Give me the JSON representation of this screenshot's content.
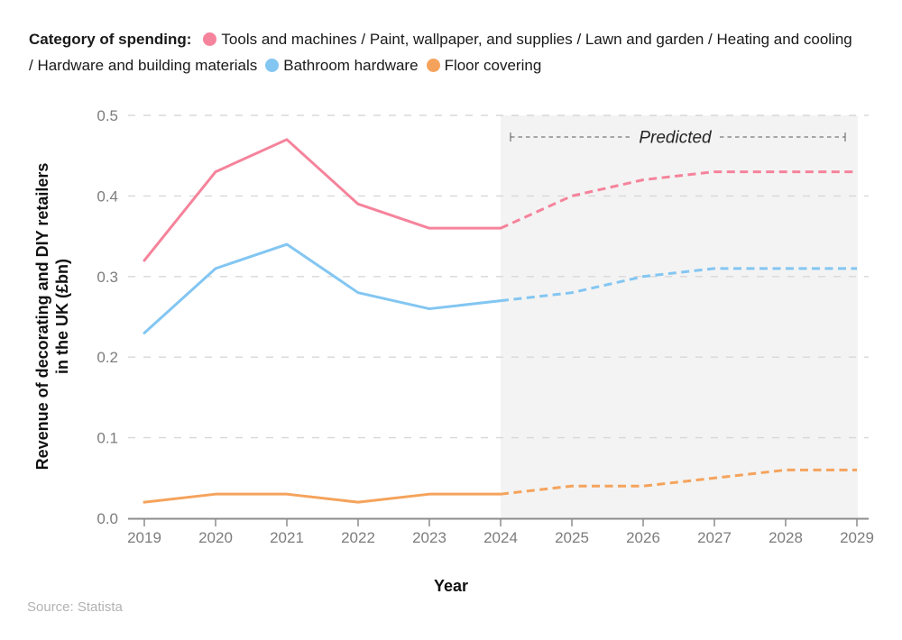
{
  "legend": {
    "title": "Category of spending:",
    "items": [
      {
        "label": "Tools and machines / Paint, wallpaper, and supplies / Lawn and garden / Heating and cooling / Hardware and building materials",
        "color": "#F5839B"
      },
      {
        "label": "Bathroom hardware",
        "color": "#83C6F2"
      },
      {
        "label": "Floor covering",
        "color": "#F5A35C"
      }
    ]
  },
  "axes": {
    "xlabel": "Year",
    "ylabel_lines": [
      "Revenue of decorating and DIY retailers",
      "in the UK (£bn)"
    ]
  },
  "annotation": {
    "predicted_label": "Predicted"
  },
  "source": "Source: Statista",
  "chart_data": {
    "type": "line",
    "title": "",
    "xlabel": "Year",
    "ylabel": "Revenue of decorating and DIY retailers in the UK (£bn)",
    "x": [
      2019,
      2020,
      2021,
      2022,
      2023,
      2024,
      2025,
      2026,
      2027,
      2028,
      2029
    ],
    "ylim": [
      0,
      0.5
    ],
    "yticks": [
      0,
      0.1,
      0.2,
      0.3,
      0.4,
      0.5
    ],
    "grid": "horizontal-dashed",
    "legend_position": "top",
    "predicted": {
      "label": "Predicted",
      "from": 2024,
      "to": 2029,
      "style": "dashed-lines-over-shaded-region"
    },
    "series": [
      {
        "name": "Tools and machines / Paint, wallpaper, and supplies / Lawn and garden / Heating and cooling / Hardware and building materials",
        "color": "#F5839B",
        "values": [
          0.32,
          0.43,
          0.47,
          0.39,
          0.36,
          0.36,
          0.4,
          0.42,
          0.43,
          0.43,
          0.43
        ]
      },
      {
        "name": "Bathroom hardware",
        "color": "#83C6F2",
        "values": [
          0.23,
          0.31,
          0.34,
          0.28,
          0.26,
          0.27,
          0.28,
          0.3,
          0.31,
          0.31,
          0.31
        ]
      },
      {
        "name": "Floor covering",
        "color": "#F5A35C",
        "values": [
          0.02,
          0.03,
          0.03,
          0.02,
          0.03,
          0.03,
          0.04,
          0.04,
          0.05,
          0.06,
          0.06
        ]
      }
    ]
  }
}
